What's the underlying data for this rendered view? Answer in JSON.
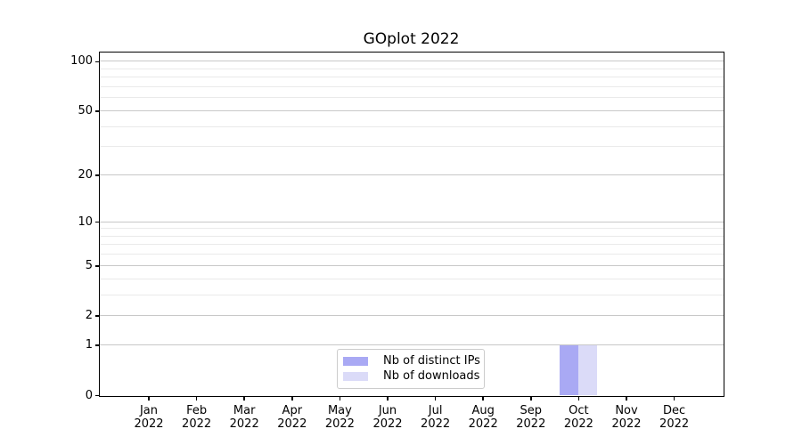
{
  "colors": {
    "bar_distinct_ips": "#a9a9f4",
    "bar_downloads": "#dbdbf8",
    "grid_major": "#c8c8c8",
    "grid_minor": "#eaeaea",
    "axis": "#000000",
    "legend_border": "#cccccc"
  },
  "chart_data": {
    "type": "bar",
    "title": "GOplot 2022",
    "x_tick_labels": [
      [
        "Jan",
        "2022"
      ],
      [
        "Feb",
        "2022"
      ],
      [
        "Mar",
        "2022"
      ],
      [
        "Apr",
        "2022"
      ],
      [
        "May",
        "2022"
      ],
      [
        "Jun",
        "2022"
      ],
      [
        "Jul",
        "2022"
      ],
      [
        "Aug",
        "2022"
      ],
      [
        "Sep",
        "2022"
      ],
      [
        "Oct",
        "2022"
      ],
      [
        "Nov",
        "2022"
      ],
      [
        "Dec",
        "2022"
      ]
    ],
    "series": [
      {
        "name": "Nb of distinct IPs",
        "color": "#a9a9f4",
        "values": [
          0,
          0,
          0,
          0,
          0,
          0,
          0,
          0,
          0,
          1,
          0,
          0
        ]
      },
      {
        "name": "Nb of downloads",
        "color": "#dbdbf8",
        "values": [
          0,
          0,
          0,
          0,
          0,
          0,
          0,
          0,
          0,
          1,
          0,
          0
        ]
      }
    ],
    "yscale": "log10(1+x)",
    "ylim": [
      0,
      113
    ],
    "y_major_ticks": [
      0,
      1,
      2,
      5,
      10,
      20,
      50,
      100
    ],
    "y_minor_ticks": [
      3,
      4,
      6,
      7,
      8,
      9,
      30,
      40,
      60,
      70,
      80,
      90
    ],
    "grid": "on",
    "legend_position": "lower center"
  }
}
